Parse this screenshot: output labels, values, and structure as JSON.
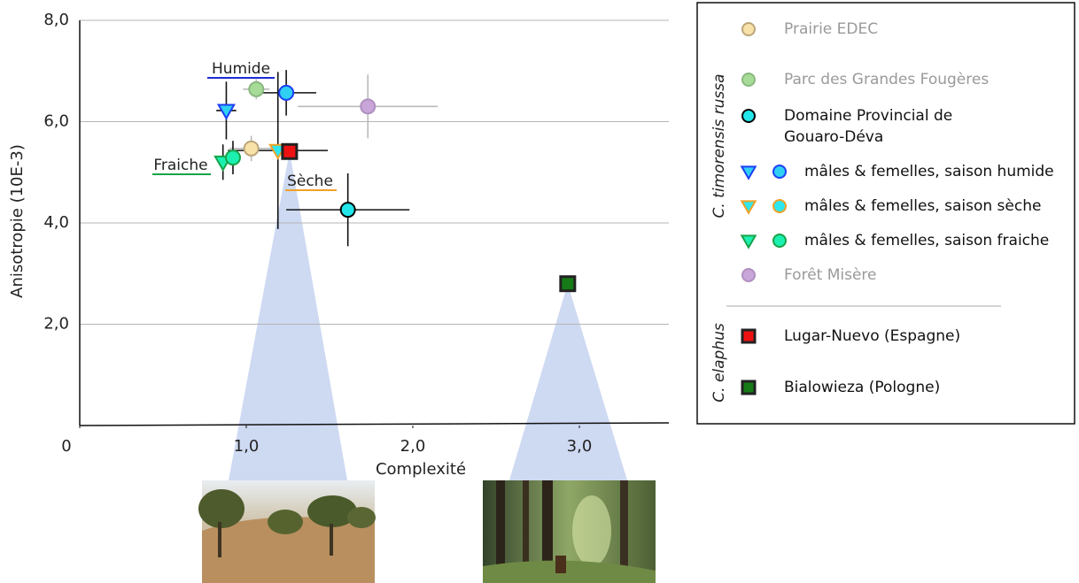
{
  "chart_data": {
    "type": "scatter",
    "x_label": "Complexité",
    "y_label": "Anisotropie (10E-3)",
    "xlim": [
      0,
      3.5
    ],
    "ylim": [
      0,
      8
    ],
    "xticks": [
      0,
      {
        "value": 1,
        "label": "1,0"
      },
      {
        "value": 2,
        "label": "2,0"
      },
      {
        "value": 3,
        "label": "3,0"
      }
    ],
    "yticks": [
      {
        "value": 2,
        "label": "2,0"
      },
      {
        "value": 4,
        "label": "4,0"
      },
      {
        "value": 6,
        "label": "6,0"
      },
      {
        "value": 8,
        "label": "8,0"
      }
    ],
    "grid": true,
    "legend": "right",
    "annotations": [
      {
        "text": "Humide",
        "color": "#1d2bd8"
      },
      {
        "text": "Sèche",
        "color": "#f0a126"
      },
      {
        "text": "Fraiche",
        "color": "#17a34a"
      }
    ],
    "groups": [
      {
        "name": "C. timorensis russa",
        "series": [
          {
            "name": "Prairie EDEC",
            "color": "#f8e2a8",
            "edge": "#bba67a",
            "text_color": "#9a9a9a",
            "err_color": "#bbbbbb",
            "legend_markers": [
              "circle"
            ],
            "point_markers": [
              "circle"
            ],
            "x": [
              1.03
            ],
            "y": [
              5.47
            ],
            "xerr": [
              0.13
            ],
            "yerr": [
              0.25
            ]
          },
          {
            "name": "Parc des Grandes Fougères",
            "color": "#a6dc98",
            "edge": "#8ab880",
            "text_color": "#9a9a9a",
            "err_color": "#bbbbbb",
            "legend_markers": [
              "circle"
            ],
            "point_markers": [
              "circle"
            ],
            "x": [
              1.06
            ],
            "y": [
              6.64
            ],
            "xerr": [
              0.08
            ],
            "yerr": [
              0.2
            ]
          },
          {
            "name": "Domaine Provincial de Gouaro-Déva",
            "color": "#22e6ea",
            "edge": "#000000",
            "text_color": "#111111",
            "err_color": "#111111",
            "legend_markers": [
              "circle"
            ],
            "point_markers": [
              "circle"
            ],
            "x": [
              1.61
            ],
            "y": [
              4.26
            ],
            "xerr": [
              0.37
            ],
            "yerr": [
              0.72
            ]
          },
          {
            "name": "mâles & femelles, saison humide",
            "color": "#2fd0f2",
            "edge": "#1d3ef5",
            "text_color": "#111111",
            "err_color": "#111111",
            "legend_markers": [
              "triangle",
              "circle"
            ],
            "point_markers": [
              "triangle",
              "circle"
            ],
            "x": [
              0.88,
              1.24
            ],
            "y": [
              6.22,
              6.57
            ],
            "xerr": [
              0.06,
              0.18
            ],
            "yerr": [
              0.57,
              0.45
            ]
          },
          {
            "name": "mâles & femelles, saison sèche",
            "color": "#2ee6ee",
            "edge": "#f0a126",
            "text_color": "#111111",
            "err_color": "#111111",
            "legend_markers": [
              "triangle",
              "circle"
            ],
            "point_markers": [
              "triangle"
            ],
            "x": [
              1.19
            ],
            "y": [
              5.43
            ],
            "xerr": [
              0.3
            ],
            "yerr": [
              1.55
            ]
          },
          {
            "name": "mâles & femelles, saison fraiche",
            "color": "#1cf0b0",
            "edge": "#17a34a",
            "text_color": "#111111",
            "err_color": "#111111",
            "legend_markers": [
              "triangle",
              "circle"
            ],
            "point_markers": [
              "triangle",
              "circle"
            ],
            "x": [
              0.86,
              0.92
            ],
            "y": [
              5.2,
              5.29
            ],
            "xerr": [
              null,
              null
            ],
            "yerr": [
              0.35,
              0.33
            ]
          },
          {
            "name": "Forêt Misère",
            "color": "#c9a6d9",
            "edge": "#b090c0",
            "text_color": "#9a9a9a",
            "err_color": "#bbbbbb",
            "legend_markers": [
              "circle"
            ],
            "point_markers": [
              "circle"
            ],
            "x": [
              1.73
            ],
            "y": [
              6.3
            ],
            "xerr": [
              0.42
            ],
            "yerr": [
              0.63
            ]
          }
        ]
      },
      {
        "name": "C. elaphus",
        "series": [
          {
            "name": "Lugar-Nuevo (Espagne)",
            "color": "#ee1111",
            "edge": "#222222",
            "text_color": "#111111",
            "err_color": "#111111",
            "legend_markers": [
              "square"
            ],
            "point_markers": [
              "square"
            ],
            "x": [
              1.26
            ],
            "y": [
              5.41
            ],
            "xerr": [
              null
            ],
            "yerr": [
              null
            ]
          },
          {
            "name": "Bialowieza (Pologne)",
            "color": "#167a16",
            "edge": "#222222",
            "text_color": "#111111",
            "err_color": "#111111",
            "legend_markers": [
              "square"
            ],
            "point_markers": [
              "square"
            ],
            "x": [
              2.93
            ],
            "y": [
              2.8
            ],
            "xerr": [
              null
            ],
            "yerr": [
              null
            ]
          }
        ]
      }
    ]
  }
}
